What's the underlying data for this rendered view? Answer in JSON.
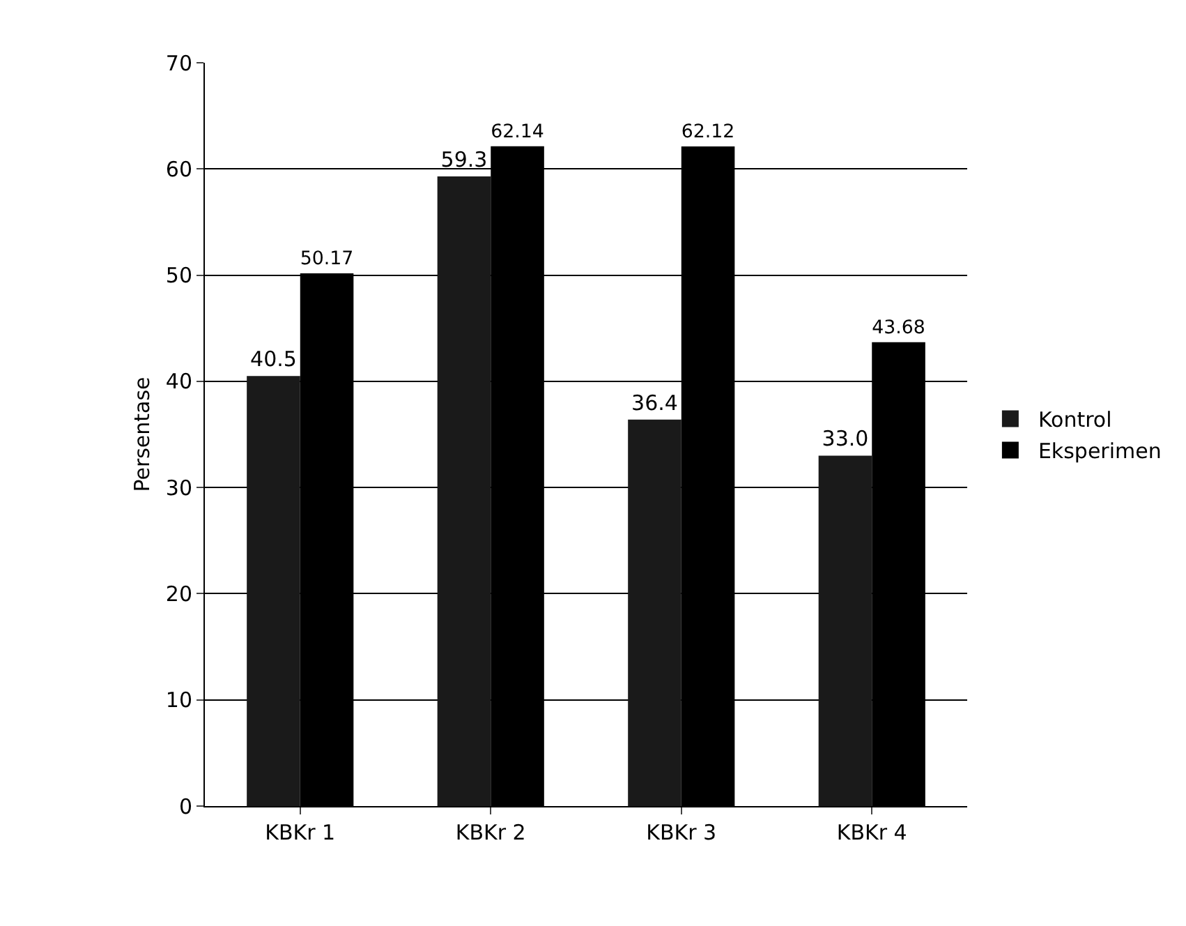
{
  "chart_data": {
    "type": "bar",
    "ylabel": "Persentase",
    "categories": [
      "KBKr 1",
      "KBKr 2",
      "KBKr 3",
      "KBKr 4"
    ],
    "series": [
      {
        "name": "Kontrol",
        "color": "#1a1a1a",
        "values": [
          40.5,
          59.3,
          36.4,
          33.0
        ],
        "value_labels": [
          "40.5",
          "59.3",
          "36.4",
          "33.0"
        ]
      },
      {
        "name": "Eksperimen",
        "color": "#000000",
        "values": [
          50.17,
          62.14,
          62.12,
          43.68
        ],
        "value_labels": [
          "50.17",
          "62.14",
          "62.12",
          "43.68"
        ]
      }
    ],
    "ylim": [
      0,
      70
    ],
    "yticks": [
      0,
      10,
      20,
      30,
      40,
      50,
      60,
      70
    ],
    "grid": "y",
    "legend": "right"
  }
}
